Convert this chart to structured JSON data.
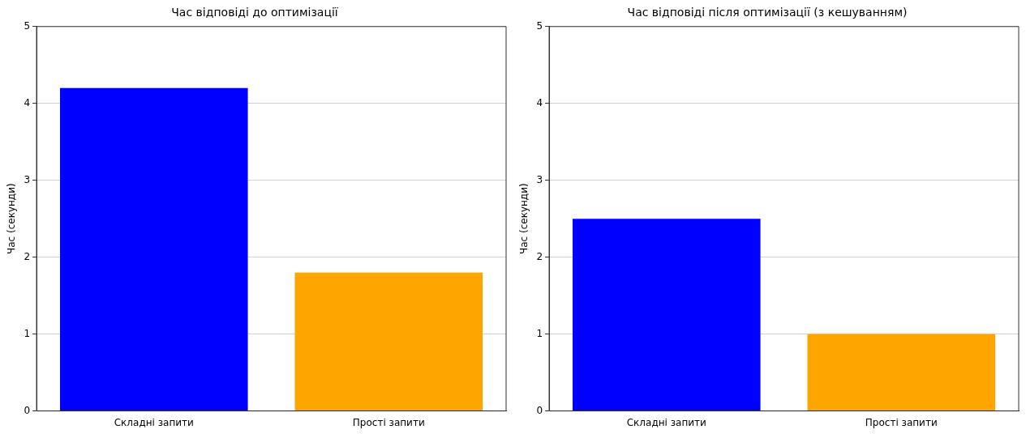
{
  "chart_data": [
    {
      "type": "bar",
      "title": "Час відповіді до оптимізації",
      "ylabel": "Час (секунди)",
      "categories": [
        "Складні запити",
        "Прості запити"
      ],
      "values": [
        4.2,
        1.8
      ],
      "colors": [
        "#0000ff",
        "#ffa500"
      ],
      "ylim": [
        0,
        5
      ],
      "yticks": [
        0,
        1,
        2,
        3,
        4,
        5
      ],
      "grid": "y"
    },
    {
      "type": "bar",
      "title": "Час відповіді після оптимізації (з кешуванням)",
      "ylabel": "Час (секунди)",
      "categories": [
        "Складні запити",
        "Прості запити"
      ],
      "values": [
        2.5,
        1.0
      ],
      "colors": [
        "#0000ff",
        "#ffa500"
      ],
      "ylim": [
        0,
        5
      ],
      "yticks": [
        0,
        1,
        2,
        3,
        4,
        5
      ],
      "grid": "y"
    }
  ]
}
